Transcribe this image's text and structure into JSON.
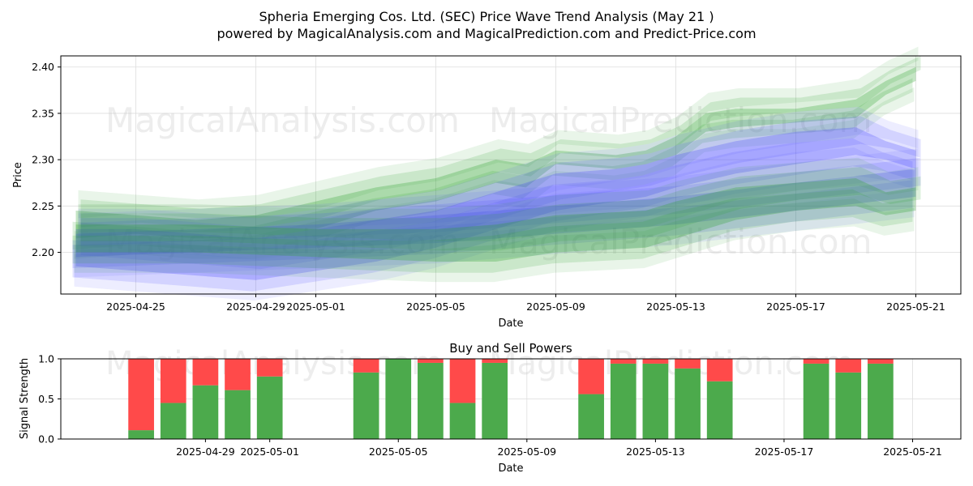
{
  "page": {
    "title_line1": "Spheria Emerging Cos. Ltd. (SEC) Price Wave Trend Analysis (May 21 )",
    "title_line2": "powered by MagicalAnalysis.com and MagicalPrediction.com and Predict-Price.com",
    "watermark_left": "MagicalAnalysis.com",
    "watermark_right": "MagicalPrediction.com"
  },
  "colors": {
    "green": "#2ca02c",
    "blue": "#4a4aff",
    "buy": "#4caa4c",
    "sell": "#ff4a4a"
  },
  "chart_data": [
    {
      "type": "area",
      "title": "",
      "xlabel": "Date",
      "ylabel": "Price",
      "x_ticks": [
        "2025-04-25",
        "2025-04-29",
        "2025-05-01",
        "2025-05-05",
        "2025-05-09",
        "2025-05-13",
        "2025-05-17",
        "2025-05-21"
      ],
      "y_ticks": [
        2.2,
        2.25,
        2.3,
        2.35,
        2.4
      ],
      "xlim": [
        "2025-04-23",
        "2025-05-22"
      ],
      "ylim": [
        2.155,
        2.412
      ],
      "grid": true,
      "series": [
        {
          "color": "green",
          "x": [
            "2025-04-23",
            "2025-04-25",
            "2025-04-27",
            "2025-04-29",
            "2025-05-01",
            "2025-05-03",
            "2025-05-05",
            "2025-05-07",
            "2025-05-08",
            "2025-05-09",
            "2025-05-11",
            "2025-05-12",
            "2025-05-13",
            "2025-05-14",
            "2025-05-15",
            "2025-05-17",
            "2025-05-19",
            "2025-05-20",
            "2025-05-21"
          ],
          "upper": [
            2.245,
            2.24,
            2.235,
            2.24,
            2.255,
            2.27,
            2.28,
            2.3,
            2.295,
            2.31,
            2.305,
            2.31,
            2.325,
            2.35,
            2.355,
            2.355,
            2.365,
            2.385,
            2.4
          ],
          "lower": [
            2.215,
            2.22,
            2.215,
            2.215,
            2.225,
            2.245,
            2.255,
            2.275,
            2.27,
            2.295,
            2.29,
            2.295,
            2.305,
            2.33,
            2.335,
            2.34,
            2.345,
            2.37,
            2.385
          ]
        },
        {
          "color": "blue",
          "x": [
            "2025-04-23",
            "2025-04-25",
            "2025-04-27",
            "2025-04-29",
            "2025-05-01",
            "2025-05-03",
            "2025-05-05",
            "2025-05-07",
            "2025-05-09",
            "2025-05-11",
            "2025-05-12",
            "2025-05-13",
            "2025-05-15",
            "2025-05-17",
            "2025-05-19",
            "2025-05-20",
            "2025-05-21"
          ],
          "upper": [
            2.225,
            2.225,
            2.22,
            2.215,
            2.225,
            2.235,
            2.245,
            2.265,
            2.285,
            2.29,
            2.295,
            2.305,
            2.32,
            2.33,
            2.335,
            2.32,
            2.31
          ],
          "lower": [
            2.185,
            2.18,
            2.175,
            2.17,
            2.18,
            2.19,
            2.205,
            2.225,
            2.245,
            2.255,
            2.26,
            2.27,
            2.285,
            2.295,
            2.305,
            2.3,
            2.29
          ]
        },
        {
          "color": "blue",
          "x": [
            "2025-04-23",
            "2025-04-27",
            "2025-05-01",
            "2025-05-05",
            "2025-05-09",
            "2025-05-13",
            "2025-05-17",
            "2025-05-21"
          ],
          "upper": [
            2.22,
            2.225,
            2.23,
            2.24,
            2.25,
            2.26,
            2.275,
            2.29
          ],
          "lower": [
            2.195,
            2.2,
            2.205,
            2.21,
            2.22,
            2.23,
            2.245,
            2.26
          ]
        },
        {
          "color": "green",
          "x": [
            "2025-04-23",
            "2025-04-27",
            "2025-05-01",
            "2025-05-05",
            "2025-05-07",
            "2025-05-09",
            "2025-05-12",
            "2025-05-13",
            "2025-05-15",
            "2025-05-17",
            "2025-05-19",
            "2025-05-20",
            "2025-05-21"
          ],
          "upper": [
            2.23,
            2.23,
            2.225,
            2.225,
            2.23,
            2.24,
            2.245,
            2.255,
            2.27,
            2.275,
            2.28,
            2.265,
            2.27
          ],
          "lower": [
            2.2,
            2.2,
            2.195,
            2.19,
            2.19,
            2.2,
            2.205,
            2.215,
            2.235,
            2.245,
            2.25,
            2.24,
            2.245
          ]
        }
      ]
    },
    {
      "type": "bar",
      "title": "Buy and Sell Powers",
      "xlabel": "Date",
      "ylabel": "Signal Strength",
      "x_ticks": [
        "2025-04-29",
        "2025-05-01",
        "2025-05-05",
        "2025-05-09",
        "2025-05-13",
        "2025-05-17",
        "2025-05-21"
      ],
      "y_ticks": [
        0.0,
        0.5,
        1.0
      ],
      "ylim": [
        0,
        1
      ],
      "xlim": [
        "2025-04-25",
        "2025-05-22"
      ],
      "grid": true,
      "categories": [
        "2025-04-27",
        "2025-04-28",
        "2025-04-29",
        "2025-04-30",
        "2025-05-01",
        "2025-05-04",
        "2025-05-05",
        "2025-05-06",
        "2025-05-07",
        "2025-05-08",
        "2025-05-11",
        "2025-05-12",
        "2025-05-13",
        "2025-05-14",
        "2025-05-15",
        "2025-05-18",
        "2025-05-19",
        "2025-05-20"
      ],
      "series": [
        {
          "name": "Buy",
          "values": [
            0.11,
            0.45,
            0.67,
            0.61,
            0.78,
            0.83,
            1.0,
            0.95,
            0.45,
            0.95,
            0.56,
            0.94,
            0.94,
            0.88,
            0.72,
            0.94,
            0.83,
            0.94
          ]
        },
        {
          "name": "Sell",
          "values": [
            0.89,
            0.55,
            0.33,
            0.39,
            0.22,
            0.17,
            0.0,
            0.05,
            0.55,
            0.05,
            0.44,
            0.06,
            0.06,
            0.12,
            0.28,
            0.06,
            0.17,
            0.06
          ]
        }
      ]
    }
  ]
}
